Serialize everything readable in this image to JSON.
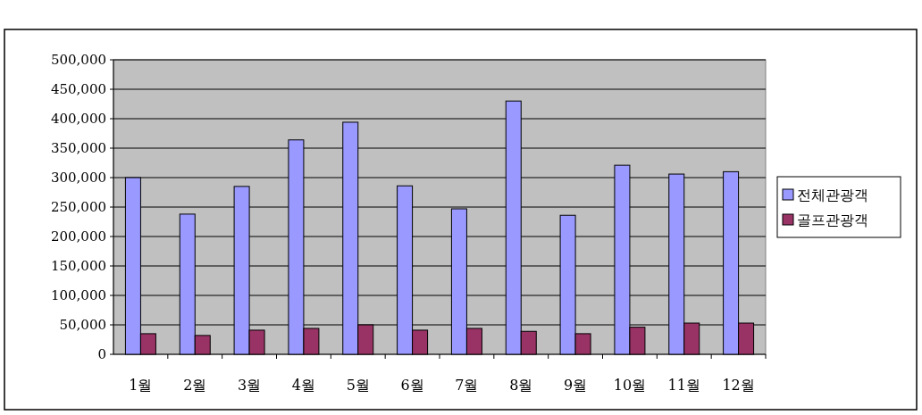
{
  "chart_data": {
    "type": "bar",
    "categories": [
      "1월",
      "2월",
      "3월",
      "4월",
      "5월",
      "6월",
      "7월",
      "8월",
      "9월",
      "10월",
      "11월",
      "12월"
    ],
    "series": [
      {
        "name": "전체관광객",
        "color": "#9999ff",
        "values": [
          300000,
          238000,
          285000,
          364000,
          394000,
          286000,
          247000,
          430000,
          236000,
          321000,
          306000,
          310000
        ]
      },
      {
        "name": "골프관광객",
        "color": "#993366",
        "values": [
          35000,
          32000,
          41000,
          44000,
          50000,
          41000,
          44000,
          39000,
          35000,
          46000,
          53000,
          53000
        ]
      }
    ],
    "ylim": [
      0,
      500000
    ],
    "yticks": [
      {
        "value": 0,
        "label": "0"
      },
      {
        "value": 50000,
        "label": "50,000"
      },
      {
        "value": 100000,
        "label": "100,000"
      },
      {
        "value": 150000,
        "label": "150,000"
      },
      {
        "value": 200000,
        "label": "200,000"
      },
      {
        "value": 250000,
        "label": "250,000"
      },
      {
        "value": 300000,
        "label": "300,000"
      },
      {
        "value": 350000,
        "label": "350,000"
      },
      {
        "value": 400000,
        "label": "400,000"
      },
      {
        "value": 450000,
        "label": "450,000"
      },
      {
        "value": 500000,
        "label": "500,000"
      }
    ],
    "grid": "y",
    "legend": "right"
  }
}
